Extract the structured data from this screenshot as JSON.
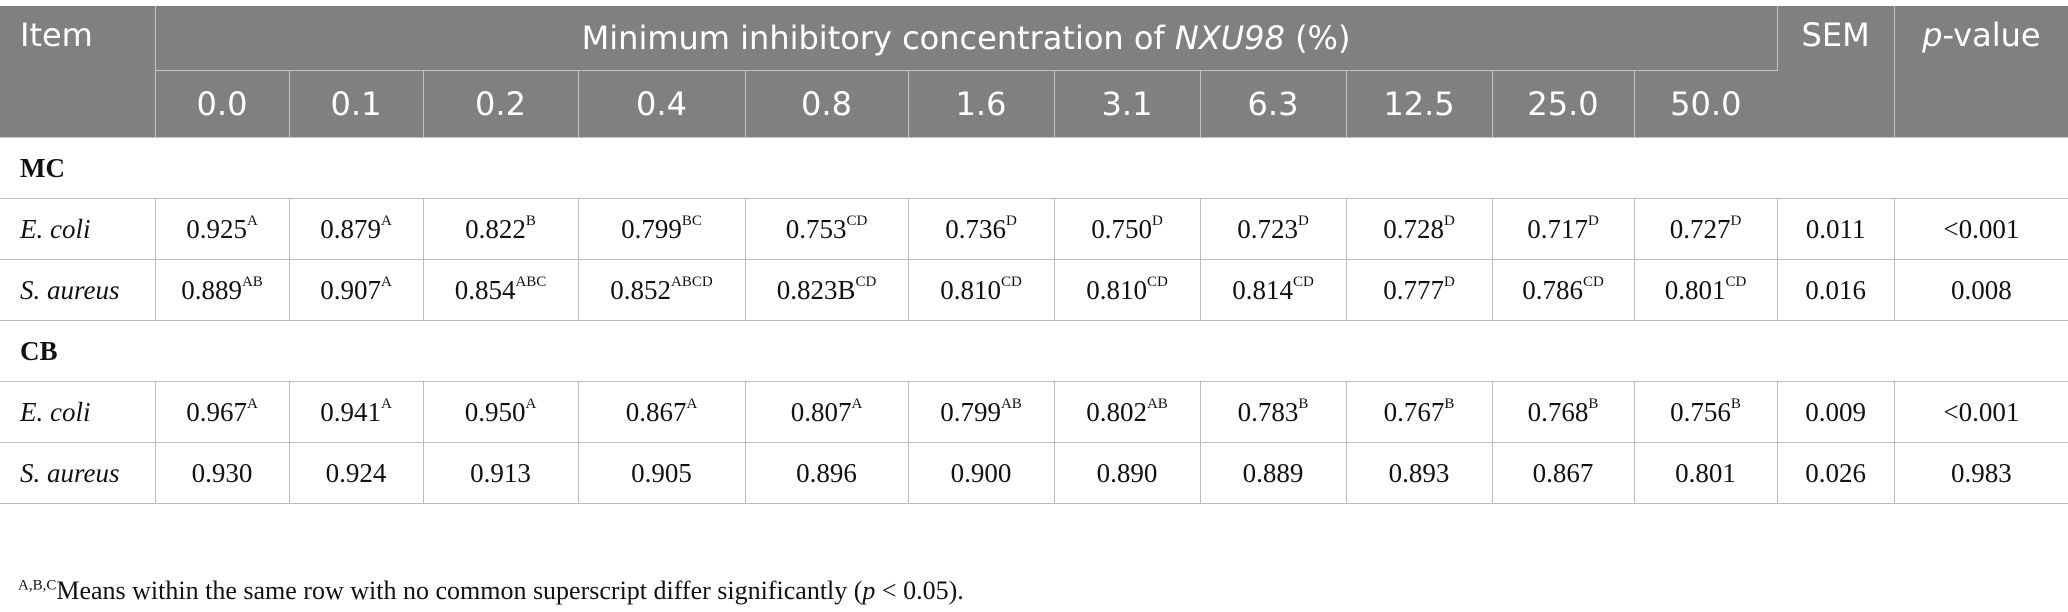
{
  "header": {
    "item": "Item",
    "mic_prefix": "Minimum inhibitory concentration of ",
    "mic_italic": "NXU98",
    "mic_suffix": " (%)",
    "sem": "SEM",
    "p_italic": "p",
    "p_suffix": "-value",
    "concentrations": [
      "0.0",
      "0.1",
      "0.2",
      "0.4",
      "0.8",
      "1.6",
      "3.1",
      "6.3",
      "12.5",
      "25.0",
      "50.0"
    ]
  },
  "groups": [
    {
      "label": "MC",
      "rows": [
        {
          "name": "E. coli",
          "cells": [
            {
              "v": "0.925",
              "s": "A"
            },
            {
              "v": "0.879",
              "s": "A"
            },
            {
              "v": "0.822",
              "s": "B"
            },
            {
              "v": "0.799",
              "s": "BC"
            },
            {
              "v": "0.753",
              "s": "CD"
            },
            {
              "v": "0.736",
              "s": "D"
            },
            {
              "v": "0.750",
              "s": "D"
            },
            {
              "v": "0.723",
              "s": "D"
            },
            {
              "v": "0.728",
              "s": "D"
            },
            {
              "v": "0.717",
              "s": "D"
            },
            {
              "v": "0.727",
              "s": "D"
            }
          ],
          "sem": "0.011",
          "p": "<0.001"
        },
        {
          "name": "S. aureus",
          "cells": [
            {
              "v": "0.889",
              "s": "AB"
            },
            {
              "v": "0.907",
              "s": "A"
            },
            {
              "v": "0.854",
              "s": "ABC"
            },
            {
              "v": "0.852",
              "s": "ABCD"
            },
            {
              "v": "0.823B",
              "s": "CD"
            },
            {
              "v": "0.810",
              "s": "CD"
            },
            {
              "v": "0.810",
              "s": "CD"
            },
            {
              "v": "0.814",
              "s": "CD"
            },
            {
              "v": "0.777",
              "s": "D"
            },
            {
              "v": "0.786",
              "s": "CD"
            },
            {
              "v": "0.801",
              "s": "CD"
            }
          ],
          "sem": "0.016",
          "p": "0.008"
        }
      ]
    },
    {
      "label": "CB",
      "rows": [
        {
          "name": "E. coli",
          "cells": [
            {
              "v": "0.967",
              "s": "A"
            },
            {
              "v": "0.941",
              "s": "A"
            },
            {
              "v": "0.950",
              "s": "A"
            },
            {
              "v": "0.867",
              "s": "A"
            },
            {
              "v": "0.807",
              "s": "A"
            },
            {
              "v": "0.799",
              "s": "AB"
            },
            {
              "v": "0.802",
              "s": "AB"
            },
            {
              "v": "0.783",
              "s": "B"
            },
            {
              "v": "0.767",
              "s": "B"
            },
            {
              "v": "0.768",
              "s": "B"
            },
            {
              "v": "0.756",
              "s": "B"
            }
          ],
          "sem": "0.009",
          "p": "<0.001"
        },
        {
          "name": "S. aureus",
          "cells": [
            {
              "v": "0.930",
              "s": ""
            },
            {
              "v": "0.924",
              "s": ""
            },
            {
              "v": "0.913",
              "s": ""
            },
            {
              "v": "0.905",
              "s": ""
            },
            {
              "v": "0.896",
              "s": ""
            },
            {
              "v": "0.900",
              "s": ""
            },
            {
              "v": "0.890",
              "s": ""
            },
            {
              "v": "0.889",
              "s": ""
            },
            {
              "v": "0.893",
              "s": ""
            },
            {
              "v": "0.867",
              "s": ""
            },
            {
              "v": "0.801",
              "s": ""
            }
          ],
          "sem": "0.026",
          "p": "0.983"
        }
      ]
    }
  ],
  "footnote": {
    "sup": "A,B,C",
    "text_before": "Means within the same row with no common superscript differ significantly (",
    "p_italic": "p",
    "text_after": " < 0.05)."
  },
  "colors": {
    "header_bg": "#808080",
    "header_text": "#ffffff",
    "border": "#bdbdbd"
  }
}
